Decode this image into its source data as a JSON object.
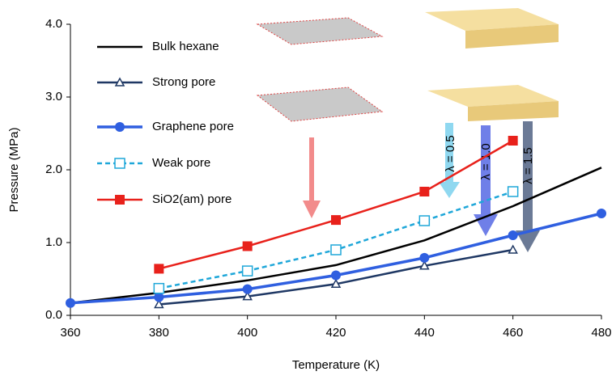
{
  "chart_data": {
    "type": "line",
    "x_label": "Temperature (K)",
    "y_label": "Pressure (MPa)",
    "xlim": [
      360,
      480
    ],
    "xticks": [
      360,
      380,
      400,
      420,
      440,
      460,
      480
    ],
    "ylim": [
      0,
      4
    ],
    "yticks": [
      {
        "value": 0,
        "label": "0.0"
      },
      {
        "value": 1,
        "label": "1.0"
      },
      {
        "value": 2,
        "label": "2.0"
      },
      {
        "value": 3,
        "label": "3.0"
      },
      {
        "value": 4,
        "label": "4.0"
      }
    ],
    "series": [
      {
        "name": "Bulk hexane",
        "color": "#000000",
        "marker": "none",
        "dash": false,
        "x": [
          360,
          380,
          400,
          420,
          440,
          460,
          480
        ],
        "values": [
          0.17,
          0.31,
          0.48,
          0.69,
          1.03,
          1.5,
          2.03
        ]
      },
      {
        "name": "Strong pore",
        "color": "#1f3864",
        "marker": "triangle",
        "dash": false,
        "x": [
          380,
          400,
          420,
          440,
          460
        ],
        "values": [
          0.15,
          0.26,
          0.43,
          0.68,
          0.9
        ]
      },
      {
        "name": "Graphene pore",
        "color": "#2f5fe0",
        "marker": "circle",
        "dash": false,
        "x": [
          360,
          380,
          400,
          420,
          440,
          460,
          480
        ],
        "values": [
          0.17,
          0.25,
          0.36,
          0.55,
          0.79,
          1.1,
          1.4
        ]
      },
      {
        "name": "Weak pore",
        "color": "#1fa7d9",
        "marker": "square-open",
        "dash": true,
        "x": [
          380,
          400,
          420,
          440,
          460
        ],
        "values": [
          0.37,
          0.61,
          0.9,
          1.3,
          1.7
        ]
      },
      {
        "name": "SiO2(am) pore",
        "color": "#e8211b",
        "marker": "square",
        "dash": false,
        "x": [
          380,
          400,
          420,
          440,
          460
        ],
        "values": [
          0.64,
          0.95,
          1.31,
          1.7,
          2.4
        ]
      }
    ],
    "annotations": [
      "λ = 0.5",
      "λ = 1.0",
      "λ = 1.5"
    ]
  }
}
